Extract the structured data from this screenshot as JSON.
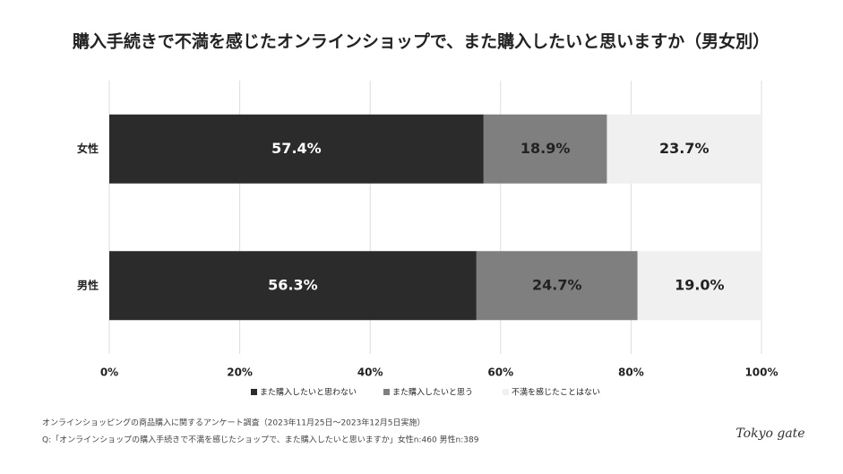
{
  "chart_data": {
    "type": "stacked-barh",
    "title": "購入手続きで不満を感じたオンラインショップで、また購入したいと思いますか（男女別）",
    "categories": [
      "女性",
      "男性"
    ],
    "series": [
      {
        "name": "また購入したいと思わない",
        "color": "#2b2b2b",
        "values": [
          57.4,
          56.3
        ],
        "value_labels": [
          "57.4%",
          "56.3%"
        ]
      },
      {
        "name": "また購入したいと思う",
        "color": "#7f7f7f",
        "values": [
          18.9,
          24.7
        ],
        "value_labels": [
          "18.9%",
          "24.7%"
        ]
      },
      {
        "name": "不満を感じたことはない",
        "color": "#f0f0f0",
        "values": [
          23.7,
          19.0
        ],
        "value_labels": [
          "23.7%",
          "19.0%"
        ]
      }
    ],
    "xlim": [
      0,
      100
    ],
    "xticks": [
      {
        "value": 0,
        "label": "0%"
      },
      {
        "value": 20,
        "label": "20%"
      },
      {
        "value": 40,
        "label": "40%"
      },
      {
        "value": 60,
        "label": "60%"
      },
      {
        "value": 80,
        "label": "80%"
      },
      {
        "value": 100,
        "label": "100%"
      }
    ],
    "grid": true,
    "notes": [
      "オンラインショッピングの商品購入に関するアンケート調査（2023年11月25日〜2023年12月5日実施）",
      "Q:「オンラインショップの購入手続きで不満を感じたショップで、また購入したいと思いますか」女性n:460 男性n:389"
    ],
    "logo": "Tokyo gate"
  }
}
